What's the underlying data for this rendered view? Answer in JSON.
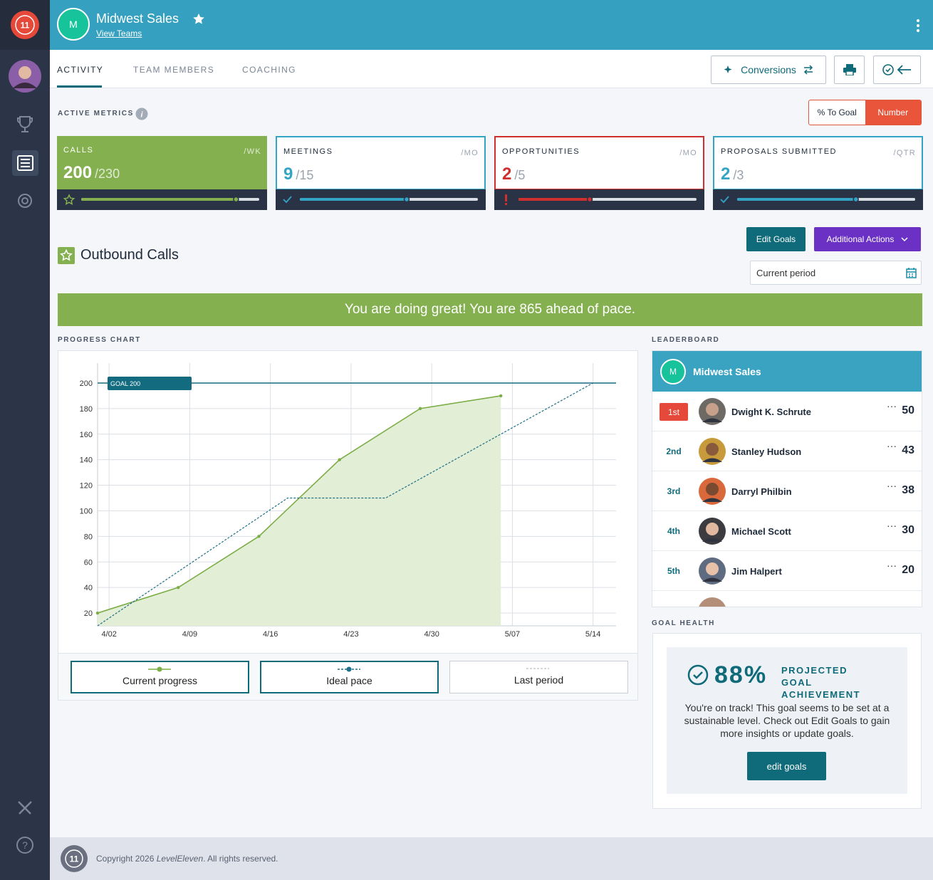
{
  "sidebar": {
    "logo": "11"
  },
  "header": {
    "initial": "M",
    "team_name": "Midwest Sales",
    "link": "View Teams"
  },
  "tabs": [
    "ACTIVITY",
    "TEAM MEMBERS",
    "COACHING"
  ],
  "toolbar": {
    "conversions": "Conversions"
  },
  "active_metrics": {
    "label": "ACTIVE METRICS",
    "toggle": [
      "% To Goal",
      "Number"
    ],
    "toggle_selected": 1,
    "metrics": [
      {
        "name": "CALLS",
        "period": "/WK",
        "value": 200,
        "goal": 230,
        "goal_label": "/230",
        "color": "#84b04f",
        "highlighted": true,
        "status": "star"
      },
      {
        "name": "MEETINGS",
        "period": "/MO",
        "value": 9,
        "goal": 15,
        "goal_label": "/15",
        "color": "#33a4c4",
        "highlighted": false,
        "status": "check"
      },
      {
        "name": "OPPORTUNITIES",
        "period": "/MO",
        "value": 2,
        "goal": 5,
        "goal_label": "/5",
        "color": "#cf2f2f",
        "highlighted": false,
        "status": "alert"
      },
      {
        "name": "PROPOSALS SUBMITTED",
        "period": "/QTR",
        "value": 2,
        "goal": 3,
        "goal_label": "/3",
        "color": "#33a4c4",
        "highlighted": false,
        "status": "check"
      }
    ]
  },
  "outbound": {
    "title": "Outbound Calls",
    "edit_goals": "Edit Goals",
    "additional_actions": "Additional Actions",
    "period": "Current period"
  },
  "banner": "You are doing great! You are 865 ahead of pace.",
  "chart_data": {
    "type": "line",
    "title": "PROGRESS CHART",
    "xlim": [
      -1,
      44
    ],
    "xticks": [
      {
        "value": 0,
        "label": "4/02"
      },
      {
        "value": 7,
        "label": "4/09"
      },
      {
        "value": 14,
        "label": "4/16"
      },
      {
        "value": 21,
        "label": "4/23"
      },
      {
        "value": 28,
        "label": "4/30"
      },
      {
        "value": 35,
        "label": "5/07"
      },
      {
        "value": 42,
        "label": "5/14"
      }
    ],
    "ylim": [
      10,
      210
    ],
    "yticks": [
      20,
      40,
      60,
      80,
      100,
      120,
      140,
      160,
      180,
      200
    ],
    "grid": true,
    "goal": 200,
    "goal_label": "GOAL 200",
    "series": [
      {
        "name": "Current progress",
        "color": "#7cad47",
        "x": [
          -1,
          6,
          13,
          20,
          27,
          34
        ],
        "values": [
          20,
          40,
          80,
          140,
          180,
          190
        ],
        "fill": true,
        "dashed": false
      },
      {
        "name": "Ideal pace",
        "color": "#1f6f86",
        "x": [
          -1,
          15.5,
          24,
          42
        ],
        "values": [
          10,
          110,
          110,
          200
        ],
        "fill": false,
        "dashed": true
      },
      {
        "name": "Last period",
        "color": "#c9c9c9",
        "x": [],
        "values": [],
        "fill": false,
        "dashed": true
      }
    ]
  },
  "leaderboard": {
    "label": "LEADERBOARD",
    "initial": "M",
    "team_name": "Midwest Sales",
    "rows": [
      {
        "rank": "1st",
        "name": "Dwight K. Schrute",
        "score": 50
      },
      {
        "rank": "2nd",
        "name": "Stanley Hudson",
        "score": 43
      },
      {
        "rank": "3rd",
        "name": "Darryl Philbin",
        "score": 38
      },
      {
        "rank": "4th",
        "name": "Michael Scott",
        "score": 30
      },
      {
        "rank": "5th",
        "name": "Jim Halpert",
        "score": 20
      }
    ]
  },
  "goal_health": {
    "label": "GOAL HEALTH",
    "value": 88,
    "value_label": "88%",
    "title": "PROJECTED GOAL ACHIEVEMENT",
    "text": "You're on track! This goal seems to be set at a sustainable level. Check out Edit Goals to gain more insights or update goals.",
    "button": "edit goals"
  },
  "footer": {
    "logo": "11",
    "text": [
      "Copyright 2026 ",
      "LevelEleven",
      ". All rights reserved."
    ]
  }
}
